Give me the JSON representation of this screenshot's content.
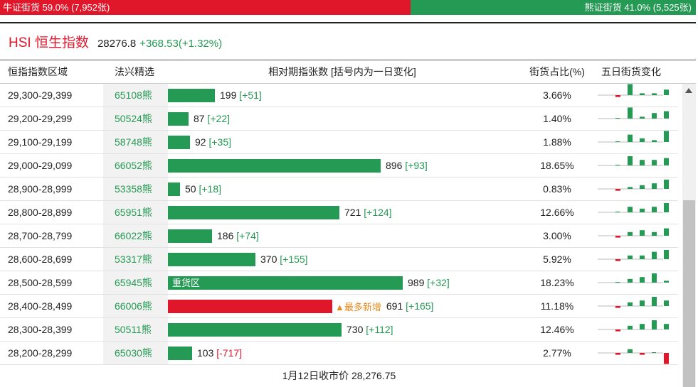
{
  "ratio": {
    "bull_label": "牛证街货 59.0% (7,952张)",
    "bear_label": "熊证街货 41.0% (5,525张)",
    "bull_fraction": 0.59
  },
  "index": {
    "title": "HSI 恒生指数",
    "price": "28276.8",
    "change": "+368.53(+1.32%)"
  },
  "table": {
    "headers": {
      "range": "恒指指数区域",
      "select": "法兴精选",
      "count": "相对期指张数 [括号内为一日变化]",
      "share": "街货占比(%)",
      "five_day": "五日街货变化"
    },
    "max_count": 989,
    "rows": [
      {
        "range": "29,300-29,399",
        "select": "65108熊",
        "count": 199,
        "count_label": "199",
        "change": "[+51]",
        "share": "3.66%",
        "five_day": [
          -1,
          6,
          1,
          1,
          3
        ],
        "label": "",
        "tag": ""
      },
      {
        "range": "29,200-29,299",
        "select": "50524熊",
        "count": 87,
        "count_label": "87",
        "change": "[+22]",
        "share": "1.40%",
        "five_day": [
          0,
          6,
          1,
          3,
          4
        ],
        "label": "",
        "tag": ""
      },
      {
        "range": "29,100-29,199",
        "select": "58748熊",
        "count": 92,
        "count_label": "92",
        "change": "[+35]",
        "share": "1.88%",
        "five_day": [
          0,
          4,
          2,
          1,
          6
        ],
        "label": "",
        "tag": ""
      },
      {
        "range": "29,000-29,099",
        "select": "66052熊",
        "count": 896,
        "count_label": "896",
        "change": "[+93]",
        "share": "18.65%",
        "five_day": [
          0,
          5,
          3,
          3,
          4
        ],
        "label": "",
        "tag": ""
      },
      {
        "range": "28,900-28,999",
        "select": "53358熊",
        "count": 50,
        "count_label": "50",
        "change": "[+18]",
        "share": "0.83%",
        "five_day": [
          -1,
          1,
          2,
          3,
          5
        ],
        "label": "",
        "tag": ""
      },
      {
        "range": "28,800-28,899",
        "select": "65951熊",
        "count": 721,
        "count_label": "721",
        "change": "[+124]",
        "share": "12.66%",
        "five_day": [
          0,
          3,
          2,
          3,
          5
        ],
        "label": "",
        "tag": ""
      },
      {
        "range": "28,700-28,799",
        "select": "66022熊",
        "count": 186,
        "count_label": "186",
        "change": "[+74]",
        "share": "3.00%",
        "five_day": [
          -1,
          2,
          3,
          2,
          4
        ],
        "label": "",
        "tag": ""
      },
      {
        "range": "28,600-28,699",
        "select": "53317熊",
        "count": 370,
        "count_label": "370",
        "change": "[+155]",
        "share": "5.92%",
        "five_day": [
          -1,
          2,
          2,
          4,
          5
        ],
        "label": "",
        "tag": ""
      },
      {
        "range": "28,500-28,599",
        "select": "65945熊",
        "count": 989,
        "count_label": "989",
        "change": "[+32]",
        "share": "18.23%",
        "five_day": [
          0,
          2,
          3,
          5,
          1
        ],
        "label": "重货区",
        "tag": ""
      },
      {
        "range": "28,400-28,499",
        "select": "66006熊",
        "count": 691,
        "count_label": "691",
        "change": "[+165]",
        "share": "11.18%",
        "five_day": [
          -1,
          2,
          3,
          5,
          3
        ],
        "label": "",
        "tag": "▲最多新增"
      },
      {
        "range": "28,300-28,399",
        "select": "50511熊",
        "count": 730,
        "count_label": "730",
        "change": "[+112]",
        "share": "12.46%",
        "five_day": [
          -1,
          2,
          3,
          5,
          3
        ],
        "label": "",
        "tag": ""
      },
      {
        "range": "28,200-28,299",
        "select": "65030熊",
        "count": 103,
        "count_label": "103",
        "change": "[-717]",
        "share": "2.77%",
        "five_day": [
          -1,
          2,
          -1,
          0,
          -6
        ],
        "label": "",
        "tag": ""
      }
    ]
  },
  "footer": "1月12日收市价 28,276.75",
  "colors": {
    "bull": "#e0162b",
    "bear": "#249a54",
    "highlight_bar": "#e0162b",
    "tag": "#e7891c"
  }
}
